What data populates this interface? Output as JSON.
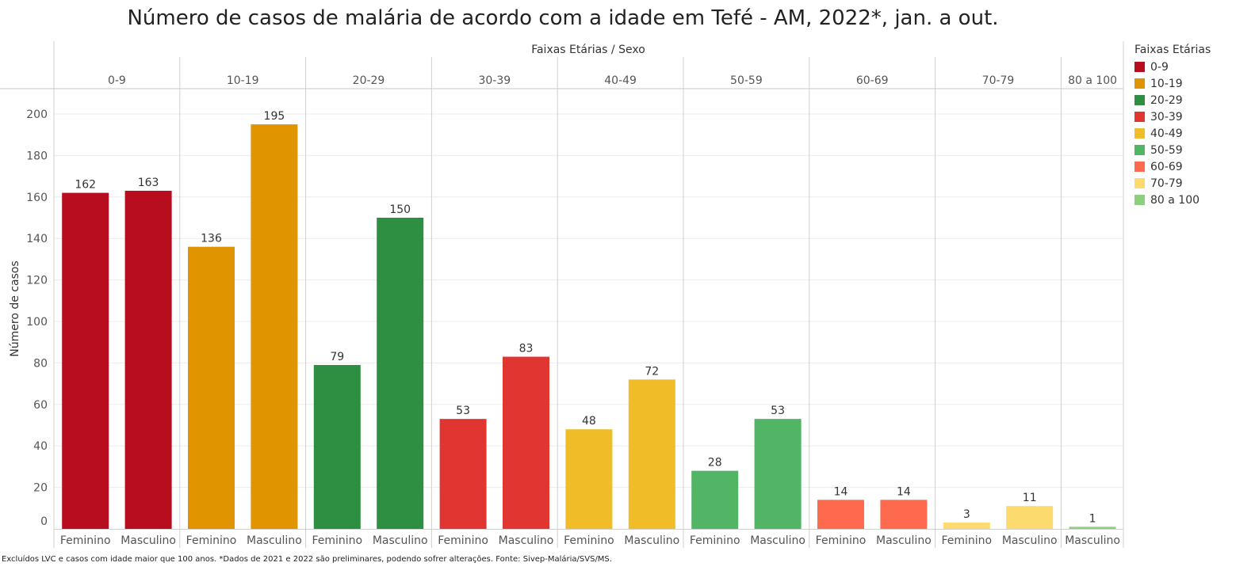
{
  "chart_data": {
    "type": "bar",
    "title": "Número de casos de malária de acordo com a idade em Tefé - AM, 2022*, jan. a out.",
    "column_header": "Faixas Etárias  /  Sexo",
    "ylabel": "Número de casos",
    "ylim": [
      0,
      210
    ],
    "yticks": [
      0,
      20,
      40,
      60,
      80,
      100,
      120,
      140,
      160,
      180,
      200
    ],
    "grid": true,
    "groups": [
      {
        "name": "0-9",
        "color": "#b80c1f",
        "bars": [
          {
            "sex": "Feminino",
            "value": 162
          },
          {
            "sex": "Masculino",
            "value": 163
          }
        ]
      },
      {
        "name": "10-19",
        "color": "#e09400",
        "bars": [
          {
            "sex": "Feminino",
            "value": 136
          },
          {
            "sex": "Masculino",
            "value": 195
          }
        ]
      },
      {
        "name": "20-29",
        "color": "#2e8f42",
        "bars": [
          {
            "sex": "Feminino",
            "value": 79
          },
          {
            "sex": "Masculino",
            "value": 150
          }
        ]
      },
      {
        "name": "30-39",
        "color": "#e03531",
        "bars": [
          {
            "sex": "Feminino",
            "value": 53
          },
          {
            "sex": "Masculino",
            "value": 83
          }
        ]
      },
      {
        "name": "40-49",
        "color": "#f0bc28",
        "bars": [
          {
            "sex": "Feminino",
            "value": 48
          },
          {
            "sex": "Masculino",
            "value": 72
          }
        ]
      },
      {
        "name": "50-59",
        "color": "#52b465",
        "bars": [
          {
            "sex": "Feminino",
            "value": 28
          },
          {
            "sex": "Masculino",
            "value": 53
          }
        ]
      },
      {
        "name": "60-69",
        "color": "#fd6a4d",
        "bars": [
          {
            "sex": "Feminino",
            "value": 14
          },
          {
            "sex": "Masculino",
            "value": 14
          }
        ]
      },
      {
        "name": "70-79",
        "color": "#fdda6e",
        "bars": [
          {
            "sex": "Feminino",
            "value": 3
          },
          {
            "sex": "Masculino",
            "value": 11
          }
        ]
      },
      {
        "name": "80 a 100",
        "color": "#8cd07e",
        "bars": [
          {
            "sex": "Masculino",
            "value": 1
          }
        ]
      }
    ],
    "legend": {
      "title": "Faixas Etárias",
      "placement": "right",
      "items": [
        {
          "label": "0-9",
          "color": "#b80c1f"
        },
        {
          "label": "10-19",
          "color": "#e09400"
        },
        {
          "label": "20-29",
          "color": "#2e8f42"
        },
        {
          "label": "30-39",
          "color": "#e03531"
        },
        {
          "label": "40-49",
          "color": "#f0bc28"
        },
        {
          "label": "50-59",
          "color": "#52b465"
        },
        {
          "label": "60-69",
          "color": "#fd6a4d"
        },
        {
          "label": "70-79",
          "color": "#fdda6e"
        },
        {
          "label": "80 a 100",
          "color": "#8cd07e"
        }
      ]
    }
  },
  "footnote": "Excluídos LVC e casos com idade maior que 100 anos. *Dados de 2021 e 2022 são preliminares, podendo sofrer alterações. Fonte: Sivep-Malária/SVS/MS."
}
